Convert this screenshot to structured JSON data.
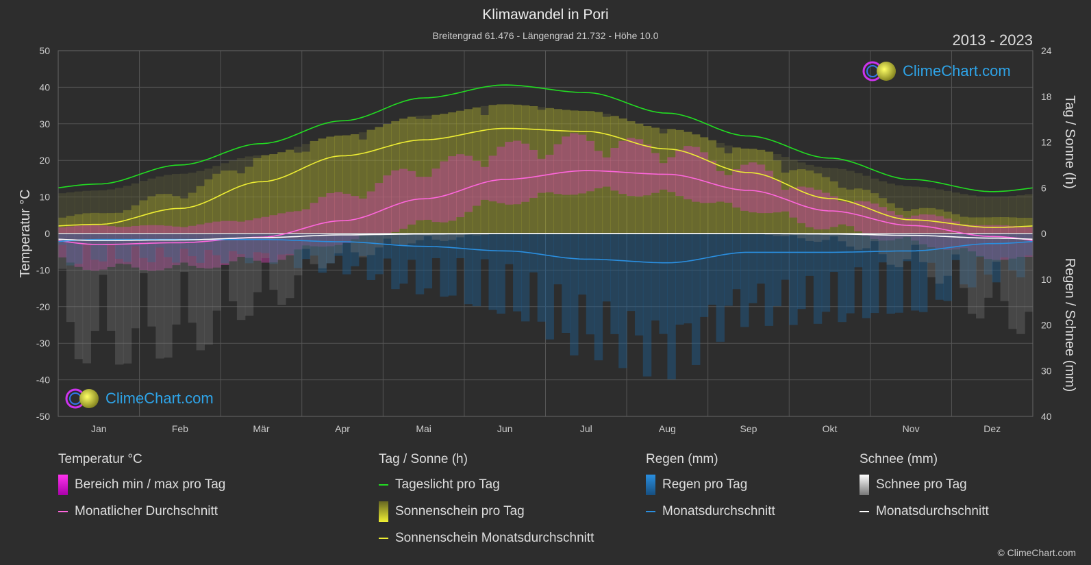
{
  "header": {
    "title": "Klimawandel in Pori",
    "subtitle": "Breitengrad 61.476 - Längengrad 21.732 - Höhe 10.0",
    "years": "2013 - 2023"
  },
  "logo": {
    "text": "ClimeChart.com"
  },
  "copyright": "© ClimeChart.com",
  "chart_data": {
    "type": "line",
    "categories": [
      "Jan",
      "Feb",
      "Mär",
      "Apr",
      "Mai",
      "Jun",
      "Jul",
      "Aug",
      "Sep",
      "Okt",
      "Nov",
      "Dez"
    ],
    "y_left": {
      "label": "Temperatur °C",
      "range": [
        -50,
        50
      ],
      "ticks": [
        50,
        40,
        30,
        20,
        10,
        0,
        -10,
        -20,
        -30,
        -40,
        -50
      ]
    },
    "y_right_top": {
      "label": "Tag / Sonne (h)",
      "range": [
        0,
        24
      ],
      "ticks": [
        24,
        18,
        12,
        6,
        0
      ]
    },
    "y_right_bottom": {
      "label": "Regen / Schnee (mm)",
      "range": [
        0,
        40
      ],
      "ticks": [
        0,
        10,
        20,
        30,
        40
      ]
    },
    "grid": true,
    "series": [
      {
        "name": "Tageslicht pro Tag",
        "unit": "h",
        "color": "#22dd22",
        "values": [
          6.5,
          9.0,
          11.8,
          14.8,
          17.8,
          19.5,
          18.5,
          15.8,
          12.8,
          9.9,
          7.1,
          5.5
        ]
      },
      {
        "name": "Sonnenschein Monatsdurchschnitt",
        "unit": "h",
        "color": "#eeee33",
        "values": [
          1.2,
          3.3,
          6.8,
          10.2,
          12.3,
          13.8,
          13.4,
          11.1,
          8.0,
          4.6,
          1.8,
          0.8
        ]
      },
      {
        "name": "Monatlicher Durchschnitt",
        "unit": "°C",
        "color": "#ff66dd",
        "values": [
          -3.0,
          -2.5,
          -1.0,
          3.5,
          9.5,
          14.8,
          17.2,
          16.2,
          11.8,
          6.2,
          2.2,
          -0.8
        ]
      },
      {
        "name": "Regen Monatsdurchschnitt",
        "unit": "mm",
        "color": "#2a8fe0",
        "values": [
          1.3,
          1.3,
          1.3,
          1.8,
          2.8,
          3.8,
          5.6,
          6.4,
          4.1,
          4.1,
          3.8,
          2.2
        ]
      },
      {
        "name": "Schnee Monatsdurchschnitt",
        "unit": "mm",
        "color": "#ffffff",
        "values": [
          1.5,
          1.4,
          0.9,
          0.3,
          0.1,
          0,
          0,
          0,
          0,
          0.1,
          0.4,
          1.0
        ]
      }
    ],
    "temp_band": {
      "min": [
        -9,
        -9,
        -7,
        -2,
        3,
        9,
        12,
        11,
        7,
        2,
        -2,
        -6
      ],
      "max": [
        2,
        2,
        4,
        10,
        17,
        22,
        24,
        22,
        17,
        10,
        5,
        2
      ]
    }
  },
  "legend": {
    "temperature": {
      "title": "Temperatur °C",
      "range_label": "Bereich min / max pro Tag",
      "avg_label": "Monatlicher Durchschnitt"
    },
    "sun": {
      "title": "Tag / Sonne (h)",
      "daylight_label": "Tageslicht pro Tag",
      "sunshine_label": "Sonnenschein pro Tag",
      "sunshine_avg_label": "Sonnenschein Monatsdurchschnitt"
    },
    "rain": {
      "title": "Regen (mm)",
      "rain_label": "Regen pro Tag",
      "avg_label": "Monatsdurchschnitt"
    },
    "snow": {
      "title": "Schnee (mm)",
      "snow_label": "Schnee pro Tag",
      "avg_label": "Monatsdurchschnitt"
    }
  }
}
